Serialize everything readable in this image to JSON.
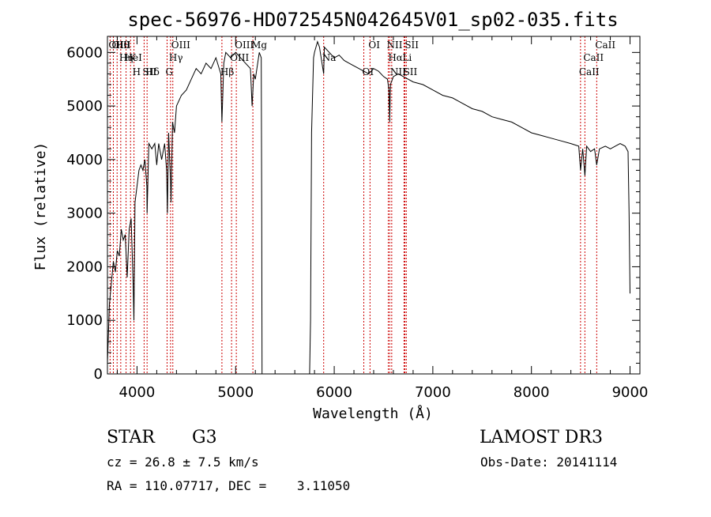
{
  "chart_data": {
    "type": "line",
    "title": "spec-56976-HD072545N042645V01_sp02-035.fits",
    "xlabel": "Wavelength (Å)",
    "ylabel": "Flux (relative)",
    "xlim": [
      3700,
      9100
    ],
    "ylim": [
      0,
      6300
    ],
    "xticks": [
      4000,
      5000,
      6000,
      7000,
      8000,
      9000
    ],
    "xticks_labels": [
      "4000",
      "5000",
      "6000",
      "7000",
      "8000",
      "9000"
    ],
    "yticks": [
      0,
      1000,
      2000,
      3000,
      4000,
      5000,
      6000
    ],
    "yticks_labels": [
      "0",
      "1000",
      "2000",
      "3000",
      "4000",
      "5000",
      "6000"
    ],
    "grid": false,
    "series": [
      {
        "x": [
          3700,
          3720,
          3740,
          3760,
          3780,
          3800,
          3820,
          3840,
          3860,
          3880,
          3900,
          3920,
          3940,
          3960,
          3968,
          3980,
          4000,
          4020,
          4040,
          4060,
          4080,
          4100,
          4102,
          4120,
          4150,
          4180,
          4200,
          4220,
          4250,
          4280,
          4300,
          4308,
          4320,
          4340,
          4345,
          4360,
          4380,
          4400,
          4450,
          4500,
          4550,
          4600,
          4650,
          4700,
          4750,
          4800,
          4850,
          4861,
          4880,
          4900,
          4950,
          5000,
          5050,
          5100,
          5150,
          5167,
          5184,
          5200,
          5240,
          5260,
          5265,
          5268,
          5275,
          5750,
          5760,
          5770,
          5790,
          5800,
          5830,
          5850,
          5893,
          5900,
          5950,
          6000,
          6050,
          6100,
          6150,
          6200,
          6250,
          6300,
          6350,
          6400,
          6450,
          6500,
          6540,
          6555,
          6563,
          6570,
          6600,
          6650,
          6700,
          6750,
          6800,
          6900,
          7000,
          7100,
          7200,
          7300,
          7400,
          7500,
          7600,
          7700,
          7800,
          7900,
          8000,
          8100,
          8200,
          8300,
          8400,
          8480,
          8498,
          8520,
          8542,
          8560,
          8600,
          8640,
          8662,
          8690,
          8750,
          8800,
          8850,
          8900,
          8950,
          8980,
          8990,
          9000
        ],
        "y": [
          200,
          1300,
          1700,
          2100,
          1900,
          2300,
          2200,
          2700,
          2500,
          2600,
          1800,
          2700,
          2900,
          1700,
          1000,
          3200,
          3500,
          3800,
          3900,
          3800,
          4000,
          3500,
          3000,
          4300,
          4200,
          4300,
          3900,
          4300,
          4000,
          4300,
          3800,
          3000,
          4500,
          3600,
          3200,
          4700,
          4500,
          5000,
          5200,
          5300,
          5500,
          5700,
          5600,
          5800,
          5700,
          5900,
          5600,
          4700,
          5800,
          6000,
          5900,
          6000,
          5900,
          5800,
          5700,
          5000,
          5600,
          5500,
          6000,
          5900,
          3000,
          0,
          0,
          0,
          1000,
          4500,
          5900,
          6000,
          6200,
          6100,
          5600,
          6100,
          6000,
          5900,
          5950,
          5850,
          5800,
          5750,
          5700,
          5650,
          5600,
          5700,
          5650,
          5550,
          5500,
          5300,
          4700,
          5400,
          5550,
          5600,
          5550,
          5500,
          5450,
          5400,
          5300,
          5200,
          5150,
          5050,
          4950,
          4900,
          4800,
          4750,
          4700,
          4600,
          4500,
          4450,
          4400,
          4350,
          4300,
          4250,
          3800,
          4200,
          3700,
          4250,
          4150,
          4200,
          3900,
          4200,
          4250,
          4200,
          4250,
          4300,
          4250,
          4150,
          3000,
          1500
        ]
      }
    ],
    "line_markers": [
      {
        "label": "Hθ",
        "x": 3798
      },
      {
        "label": "K",
        "x": 3934
      },
      {
        "label": "Hδ",
        "x": 4102
      },
      {
        "label": "OII",
        "x": 3727
      },
      {
        "label": "HeI",
        "x": 3889
      },
      {
        "label": "SII",
        "x": 4072
      },
      {
        "label": "OIII",
        "x": 3760
      },
      {
        "label": "Hη",
        "x": 3835
      },
      {
        "label": "H",
        "x": 3969
      },
      {
        "label": "OIII",
        "x": 4363
      },
      {
        "label": "Hγ",
        "x": 4340
      },
      {
        "label": "G",
        "x": 4305
      },
      {
        "label": "OIII",
        "x": 5007
      },
      {
        "label": "OIII",
        "x": 4959
      },
      {
        "label": "Hβ",
        "x": 4861
      },
      {
        "label": "Mg",
        "x": 5175
      },
      {
        "label": "Na",
        "x": 5893
      },
      {
        "label": "OI",
        "x": 6300
      },
      {
        "label": "OI",
        "x": 6363
      },
      {
        "label": "Hα",
        "x": 6563
      },
      {
        "label": "SII",
        "x": 6717
      },
      {
        "label": "NII",
        "x": 6548
      },
      {
        "label": "Li",
        "x": 6708
      },
      {
        "label": "NII",
        "x": 6583
      },
      {
        "label": "SII",
        "x": 6731
      },
      {
        "label": "CaII",
        "x": 8542
      },
      {
        "label": "CaII",
        "x": 8498
      },
      {
        "label": "CaII",
        "x": 8662
      }
    ]
  },
  "info": {
    "object_type": "STAR",
    "subclass": "G3",
    "survey": "LAMOST DR3",
    "cz": "cz = 26.8 ± 7.5 km/s",
    "obs_date": "Obs-Date: 20141114",
    "radec": "RA = 110.07717, DEC =    3.11050"
  },
  "colors": {
    "spectrum": "#000000",
    "marker_line": "#cc0000",
    "text": "#000000",
    "background": "#ffffff"
  }
}
